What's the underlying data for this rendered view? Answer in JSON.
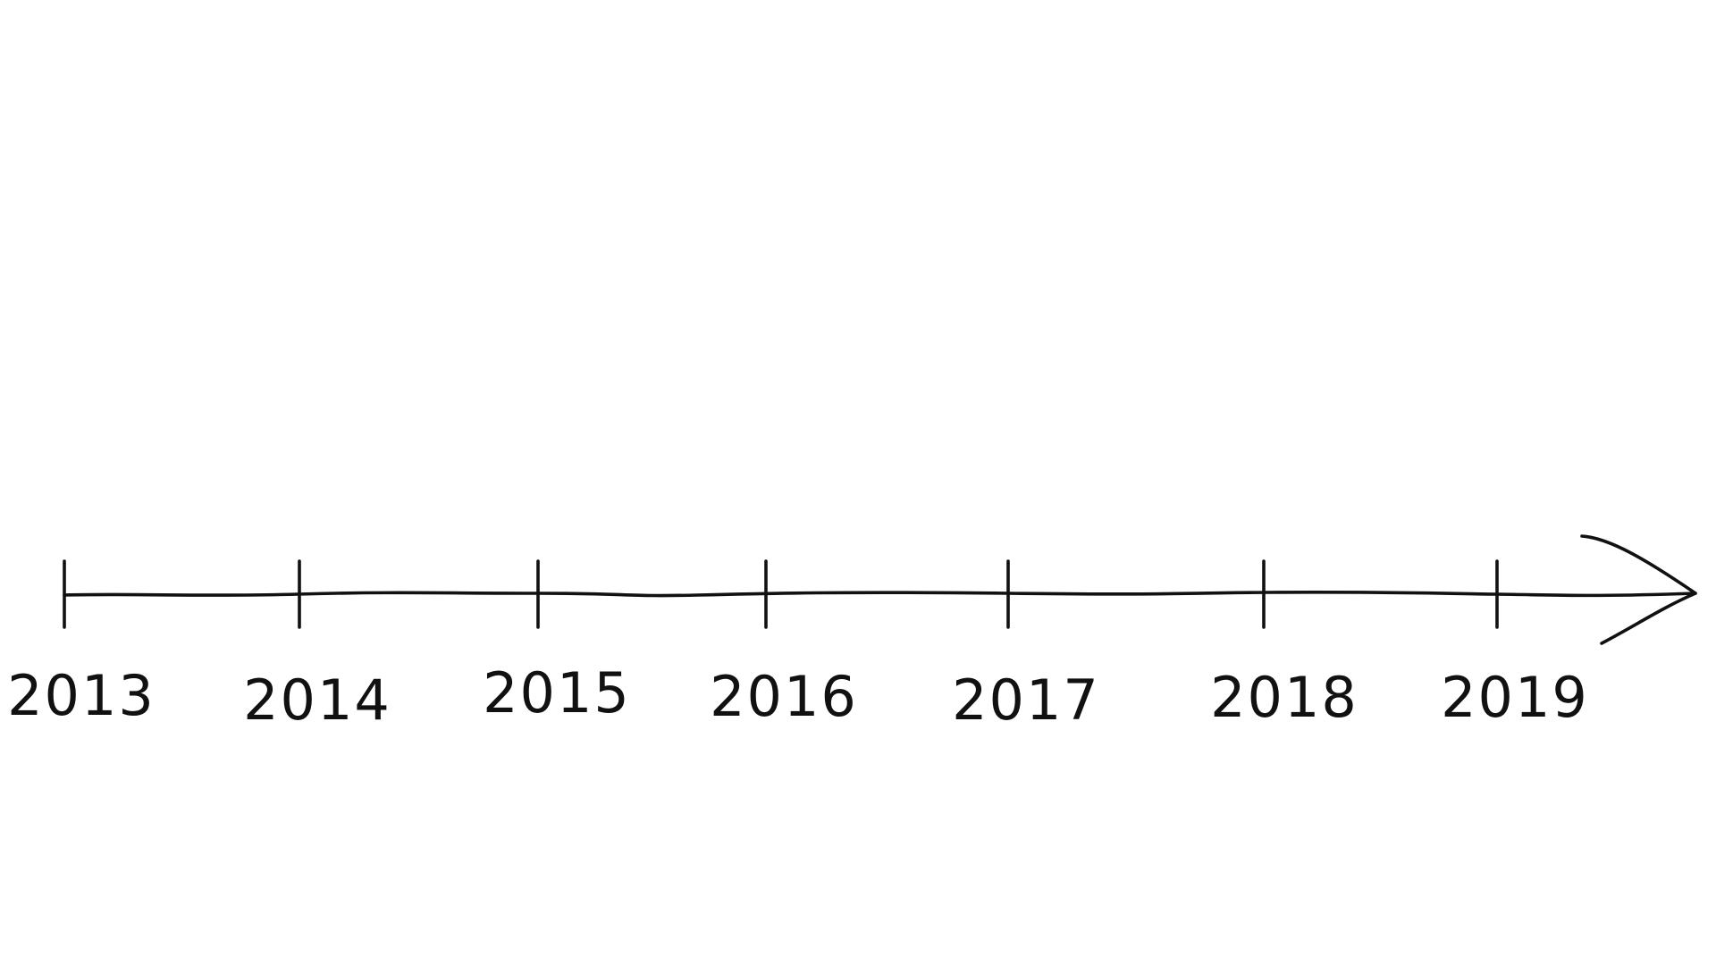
{
  "timeline": {
    "years": [
      "2013",
      "2014",
      "2015",
      "2016",
      "2017",
      "2018",
      "2019"
    ],
    "colors": {
      "ink": "#111111",
      "background": "#ffffff"
    },
    "direction": "arrow-right"
  }
}
